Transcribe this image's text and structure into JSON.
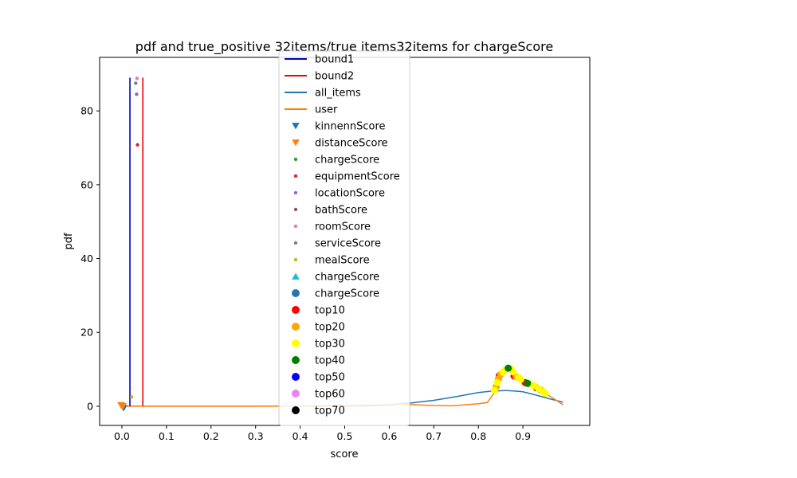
{
  "chart_data": {
    "type": "line",
    "title": "pdf and true_positive 32items/true items32items for chargeScore",
    "xlabel": "score",
    "ylabel": "pdf",
    "xlim": [
      -0.05,
      1.05
    ],
    "ylim": [
      -5.2,
      94.5
    ],
    "xticks": [
      0.0,
      0.1,
      0.2,
      0.3,
      0.4,
      0.5,
      0.6,
      0.7,
      0.8,
      0.9
    ],
    "xtick_labels": [
      "0.0",
      "0.1",
      "0.2",
      "0.3",
      "0.4",
      "0.5",
      "0.6",
      "0.7",
      "0.8",
      "0.9"
    ],
    "yticks": [
      0,
      20,
      40,
      60,
      80
    ],
    "ytick_labels": [
      "0",
      "20",
      "40",
      "60",
      "80"
    ],
    "grid": false,
    "legend_position": "top-center",
    "vlines": [
      {
        "name": "bound1",
        "x": 0.018,
        "y0": 0,
        "y1": 89,
        "color": "#0000cc"
      },
      {
        "name": "bound2",
        "x": 0.047,
        "y0": 0,
        "y1": 89,
        "color": "#ee0000"
      }
    ],
    "series": [
      {
        "name": "all_items",
        "color": "#1f77b4",
        "x": [
          0.0,
          0.1,
          0.2,
          0.3,
          0.4,
          0.5,
          0.55,
          0.6,
          0.65,
          0.7,
          0.75,
          0.8,
          0.83,
          0.86,
          0.88,
          0.9,
          0.93,
          0.96,
          0.99
        ],
        "y": [
          0.02,
          0.02,
          0.02,
          0.03,
          0.05,
          0.12,
          0.2,
          0.4,
          0.9,
          1.6,
          2.6,
          3.7,
          4.1,
          4.25,
          4.15,
          3.9,
          3.0,
          2.0,
          1.1
        ]
      },
      {
        "name": "user",
        "color": "#ff7f0e",
        "x": [
          0.0,
          0.3,
          0.55,
          0.6,
          0.63,
          0.66,
          0.7,
          0.74,
          0.77,
          0.8,
          0.82,
          0.835,
          0.85,
          0.865,
          0.875,
          0.89,
          0.91,
          0.93,
          0.95,
          0.97,
          0.99
        ],
        "y": [
          0.0,
          0.0,
          0.05,
          0.3,
          0.55,
          0.4,
          0.2,
          0.1,
          0.4,
          0.7,
          1.0,
          3.5,
          7.5,
          10.0,
          10.1,
          8.0,
          6.5,
          5.0,
          3.5,
          2.0,
          0.4
        ]
      }
    ],
    "markers": [
      {
        "name": "kinnennScore",
        "shape": "triangle-down",
        "color": "#1f77b4",
        "size": 8,
        "points": [
          [
            0.001,
            0
          ],
          [
            0.004,
            -0.5
          ]
        ]
      },
      {
        "name": "distanceScore",
        "shape": "triangle-down",
        "color": "#ff7f0e",
        "size": 8,
        "points": [
          [
            -0.002,
            0.3
          ],
          [
            0.002,
            0
          ]
        ]
      },
      {
        "name": "chargeScore",
        "shape": "dot",
        "color": "#2ca02c",
        "size": 3,
        "points": []
      },
      {
        "name": "equipmentScore",
        "shape": "dot",
        "color": "#d62728",
        "size": 3,
        "points": [
          [
            0.035,
            70.8
          ]
        ]
      },
      {
        "name": "locationScore",
        "shape": "dot",
        "color": "#9467bd",
        "size": 3,
        "points": [
          [
            0.033,
            84.5
          ]
        ]
      },
      {
        "name": "bathScore",
        "shape": "dot",
        "color": "#8c564b",
        "size": 3,
        "points": []
      },
      {
        "name": "roomScore",
        "shape": "dot",
        "color": "#e377c2",
        "size": 3,
        "points": [
          [
            0.034,
            88.8
          ]
        ]
      },
      {
        "name": "serviceScore",
        "shape": "dot",
        "color": "#7f7f7f",
        "size": 3,
        "points": [
          [
            0.031,
            87.5
          ]
        ]
      },
      {
        "name": "mealScore",
        "shape": "dot",
        "color": "#bcbd22",
        "size": 3,
        "points": [
          [
            0.022,
            2.5
          ]
        ]
      },
      {
        "name": "chargeScore",
        "shape": "triangle-up",
        "color": "#17becf",
        "size": 8,
        "points": []
      },
      {
        "name": "chargeScore",
        "shape": "circle",
        "color": "#1f77b4",
        "size": 6,
        "points": []
      },
      {
        "name": "top10",
        "shape": "circle",
        "color": "#ff0000",
        "size": 5,
        "points": [
          [
            0.847,
            8.3
          ],
          [
            0.88,
            8.2
          ],
          [
            0.905,
            6.4
          ],
          [
            0.93,
            5.0
          ]
        ]
      },
      {
        "name": "top20",
        "shape": "circle",
        "color": "#ffa500",
        "size": 5,
        "points": [
          [
            0.84,
            5.3
          ],
          [
            0.845,
            7.4
          ],
          [
            0.85,
            8.6
          ],
          [
            0.885,
            8.0
          ],
          [
            0.915,
            6.0
          ],
          [
            0.94,
            4.4
          ]
        ]
      },
      {
        "name": "top30",
        "shape": "circle",
        "color": "#ffff00",
        "size": 5,
        "points": [
          [
            0.836,
            4.3
          ],
          [
            0.842,
            6.4
          ],
          [
            0.855,
            9.2
          ],
          [
            0.86,
            9.8
          ],
          [
            0.873,
            10.1
          ],
          [
            0.878,
            9.3
          ],
          [
            0.89,
            7.8
          ],
          [
            0.895,
            7.3
          ],
          [
            0.92,
            5.8
          ],
          [
            0.925,
            5.5
          ],
          [
            0.935,
            4.8
          ],
          [
            0.945,
            4.0
          ],
          [
            0.95,
            3.5
          ]
        ]
      },
      {
        "name": "top40",
        "shape": "circle",
        "color": "#008000",
        "size": 5,
        "points": [
          [
            0.867,
            10.3
          ],
          [
            0.91,
            6.2
          ]
        ]
      },
      {
        "name": "top50",
        "shape": "circle",
        "color": "#0000ff",
        "size": 5,
        "points": []
      },
      {
        "name": "top60",
        "shape": "circle",
        "color": "#ee82ee",
        "size": 5,
        "points": []
      },
      {
        "name": "top70",
        "shape": "circle",
        "color": "#000000",
        "size": 5,
        "points": []
      }
    ]
  }
}
